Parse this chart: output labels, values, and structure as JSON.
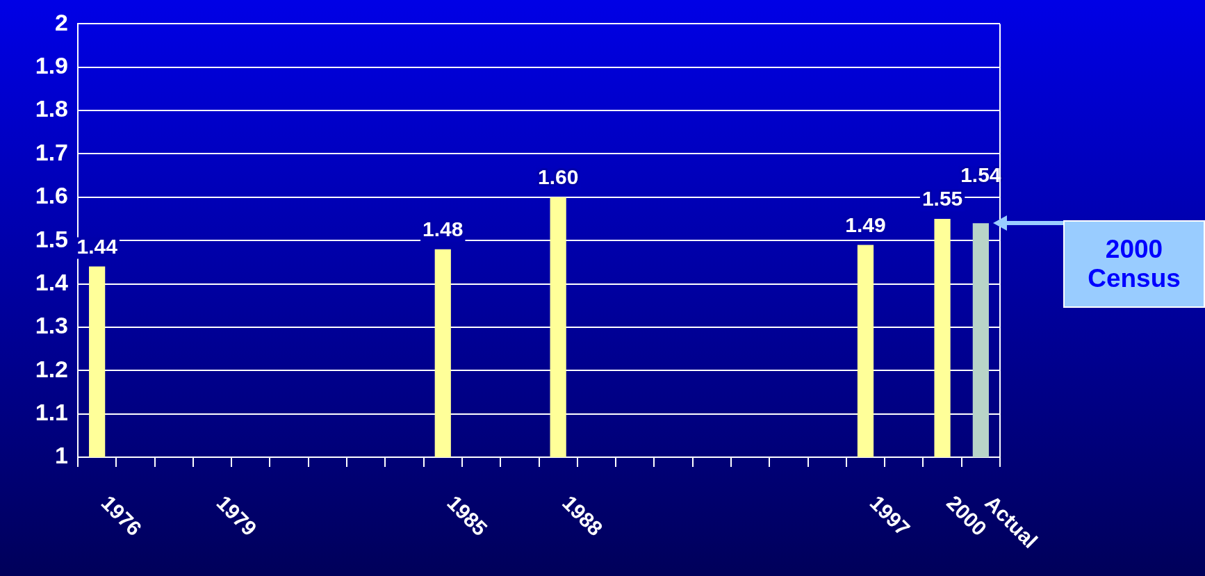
{
  "chart_data": {
    "type": "bar",
    "categories": [
      "1976",
      null,
      null,
      "1979",
      null,
      null,
      null,
      null,
      null,
      "1985",
      null,
      null,
      "1988",
      null,
      null,
      null,
      null,
      null,
      null,
      null,
      "1997",
      null,
      "2000",
      "Actual"
    ],
    "values": [
      1.44,
      null,
      null,
      null,
      null,
      null,
      null,
      null,
      null,
      1.48,
      null,
      null,
      1.6,
      null,
      null,
      null,
      null,
      null,
      null,
      null,
      1.49,
      null,
      1.55,
      1.54
    ],
    "colors": [
      "#ffff99",
      "#ffff99",
      "#ffff99",
      "#ffff99",
      "#ffff99",
      "#ffff99",
      "#ffff99",
      "#ffff99",
      "#ffff99",
      "#ffff99",
      "#ffff99",
      "#ffff99",
      "#ffff99",
      "#ffff99",
      "#ffff99",
      "#ffff99",
      "#ffff99",
      "#ffff99",
      "#ffff99",
      "#ffff99",
      "#ffff99",
      "#ffff99",
      "#ffff99",
      "#b8d4c8"
    ],
    "value_labels": [
      "1.44",
      null,
      null,
      null,
      null,
      null,
      null,
      null,
      null,
      "1.48",
      null,
      null,
      "1.60",
      null,
      null,
      null,
      null,
      null,
      null,
      null,
      "1.49",
      null,
      "1.55",
      "1.54"
    ],
    "ylim": [
      1,
      2
    ],
    "yticks": [
      1,
      {
        "value": 1.1,
        "label": "1.1"
      },
      {
        "value": 1.2,
        "label": "1.2"
      },
      {
        "value": 1.3,
        "label": "1.3"
      },
      {
        "value": 1.4,
        "label": "1.4"
      },
      {
        "value": 1.5,
        "label": "1.5"
      },
      {
        "value": 1.6,
        "label": "1.6"
      },
      {
        "value": 1.7,
        "label": "1.7"
      },
      {
        "value": 1.8,
        "label": "1.8"
      },
      {
        "value": 1.9,
        "label": "1.9"
      },
      2
    ],
    "grid": "y",
    "legend": false,
    "annotations": [
      "2000 Census"
    ]
  }
}
